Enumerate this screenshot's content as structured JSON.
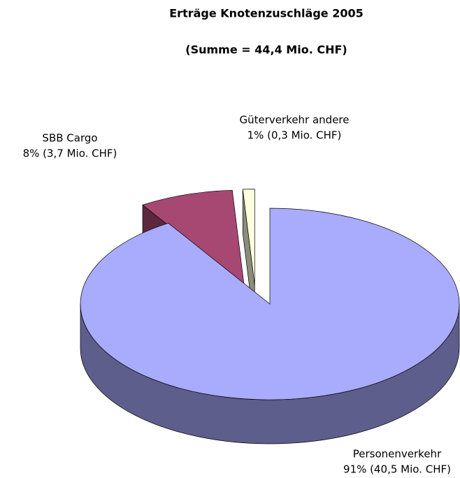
{
  "chart_data": {
    "type": "pie",
    "title": "Erträge Knotenzuschläge 2005",
    "subtitle": "(Summe = 44,4 Mio. CHF)",
    "categories": [
      "Personenverkehr",
      "SBB Cargo",
      "Güterverkehr andere"
    ],
    "values": [
      91,
      8,
      1
    ],
    "value_labels": [
      "91% (40,5 Mio. CHF)",
      "8% (3,7 Mio. CHF)",
      "1% (0,3 Mio. CHF)"
    ],
    "colors": [
      "#a9abfd",
      "#a64872",
      "#ffffe0"
    ]
  }
}
